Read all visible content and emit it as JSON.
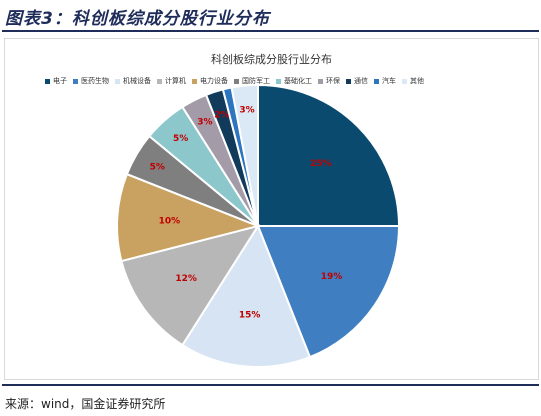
{
  "figure_title": "图表3：科创板综成分股行业分布",
  "source": "来源：wind，国金证券研究所",
  "chart_data": {
    "type": "pie",
    "title": "科创板综成分股行业分布",
    "legend_position": "top",
    "start_angle": "12 o'clock",
    "direction": "clockwise",
    "categories": [
      "电子",
      "医药生物",
      "机械设备",
      "计算机",
      "电力设备",
      "国防军工",
      "基础化工",
      "环保",
      "通信",
      "汽车",
      "其他"
    ],
    "values": [
      25,
      19,
      15,
      12,
      10,
      5,
      5,
      3,
      2,
      1,
      3
    ],
    "data_labels": [
      "25%",
      "19%",
      "15%",
      "12%",
      "10%",
      "5%",
      "5%",
      "3%",
      "2%",
      "",
      "3%"
    ],
    "colors": [
      "#0b4a6f",
      "#3f7fc1",
      "#d6e4f3",
      "#b7b7b7",
      "#c9a261",
      "#7f7f7f",
      "#8cc7cc",
      "#a49ba8",
      "#123a5a",
      "#2e75c0",
      "#dbe8f5"
    ],
    "label_color": "#c00000"
  }
}
